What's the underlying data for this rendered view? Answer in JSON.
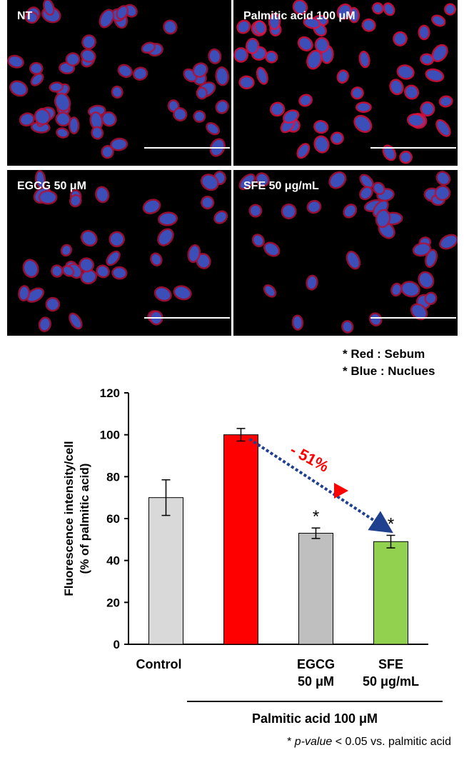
{
  "panels": [
    {
      "label": "NT"
    },
    {
      "label": "Palmitic acid 100 μM"
    },
    {
      "label": "EGCG 50 μM"
    },
    {
      "label": "SFE 50 μg/mL"
    }
  ],
  "stain_legend": [
    "* Red : Sebum",
    "* Blue : Nuclues"
  ],
  "chart_data": {
    "type": "bar",
    "categories": [
      "Control",
      "",
      "EGCG\n50 μM",
      "SFE\n50 μg/mL"
    ],
    "values": [
      70,
      100,
      53,
      49
    ],
    "errors": [
      8.5,
      3,
      2.5,
      3
    ],
    "bar_colors": [
      "#d9d9d9",
      "#ff0000",
      "#bfbfbf",
      "#92d050"
    ],
    "significance": [
      "",
      "",
      "*",
      "*"
    ],
    "ylabel": "Fluorescence intensity/cell\n(% of palmitic acid)",
    "ylim": [
      0,
      120
    ],
    "yticks": [
      0,
      20,
      40,
      60,
      80,
      100,
      120
    ],
    "annotation": "- 51%",
    "group_label": "Palmitic acid 100 μM",
    "footnote_prefix": "* ",
    "footnote_italic": "p-value",
    "footnote_suffix": " < 0.05 vs. palmitic acid"
  }
}
